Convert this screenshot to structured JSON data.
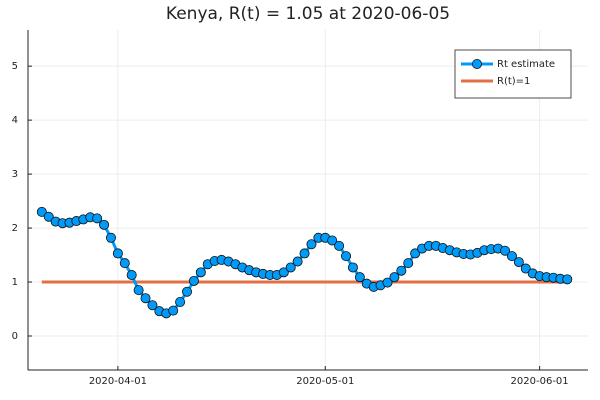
{
  "chart_data": {
    "type": "line",
    "title": "Kenya, R(t) = 1.05 at 2020-06-05",
    "x": [
      "2020-03-21",
      "2020-03-22",
      "2020-03-23",
      "2020-03-24",
      "2020-03-25",
      "2020-03-26",
      "2020-03-27",
      "2020-03-28",
      "2020-03-29",
      "2020-03-30",
      "2020-03-31",
      "2020-04-01",
      "2020-04-02",
      "2020-04-03",
      "2020-04-04",
      "2020-04-05",
      "2020-04-06",
      "2020-04-07",
      "2020-04-08",
      "2020-04-09",
      "2020-04-10",
      "2020-04-11",
      "2020-04-12",
      "2020-04-13",
      "2020-04-14",
      "2020-04-15",
      "2020-04-16",
      "2020-04-17",
      "2020-04-18",
      "2020-04-19",
      "2020-04-20",
      "2020-04-21",
      "2020-04-22",
      "2020-04-23",
      "2020-04-24",
      "2020-04-25",
      "2020-04-26",
      "2020-04-27",
      "2020-04-28",
      "2020-04-29",
      "2020-04-30",
      "2020-05-01",
      "2020-05-02",
      "2020-05-03",
      "2020-05-04",
      "2020-05-05",
      "2020-05-06",
      "2020-05-07",
      "2020-05-08",
      "2020-05-09",
      "2020-05-10",
      "2020-05-11",
      "2020-05-12",
      "2020-05-13",
      "2020-05-14",
      "2020-05-15",
      "2020-05-16",
      "2020-05-17",
      "2020-05-18",
      "2020-05-19",
      "2020-05-20",
      "2020-05-21",
      "2020-05-22",
      "2020-05-23",
      "2020-05-24",
      "2020-05-25",
      "2020-05-26",
      "2020-05-27",
      "2020-05-28",
      "2020-05-29",
      "2020-05-30",
      "2020-05-31",
      "2020-06-01",
      "2020-06-02",
      "2020-06-03",
      "2020-06-04",
      "2020-06-05"
    ],
    "series": [
      {
        "name": "Rt estimate",
        "color": "#009af9",
        "markers": true,
        "values": [
          2.3,
          2.21,
          2.12,
          2.09,
          2.1,
          2.13,
          2.16,
          2.2,
          2.18,
          2.06,
          1.82,
          1.53,
          1.35,
          1.13,
          0.85,
          0.7,
          0.57,
          0.46,
          0.42,
          0.47,
          0.63,
          0.82,
          1.02,
          1.18,
          1.33,
          1.39,
          1.41,
          1.38,
          1.33,
          1.27,
          1.22,
          1.18,
          1.15,
          1.13,
          1.13,
          1.18,
          1.27,
          1.38,
          1.53,
          1.7,
          1.82,
          1.82,
          1.77,
          1.67,
          1.48,
          1.27,
          1.09,
          0.97,
          0.91,
          0.94,
          0.99,
          1.09,
          1.21,
          1.35,
          1.53,
          1.62,
          1.67,
          1.67,
          1.63,
          1.59,
          1.55,
          1.52,
          1.51,
          1.54,
          1.59,
          1.61,
          1.62,
          1.58,
          1.48,
          1.37,
          1.25,
          1.16,
          1.11,
          1.09,
          1.08,
          1.06,
          1.05
        ]
      },
      {
        "name": "R(t)=1",
        "color": "#e26f46",
        "markers": false,
        "values": [
          1,
          1,
          1,
          1,
          1,
          1,
          1,
          1,
          1,
          1,
          1,
          1,
          1,
          1,
          1,
          1,
          1,
          1,
          1,
          1,
          1,
          1,
          1,
          1,
          1,
          1,
          1,
          1,
          1,
          1,
          1,
          1,
          1,
          1,
          1,
          1,
          1,
          1,
          1,
          1,
          1,
          1,
          1,
          1,
          1,
          1,
          1,
          1,
          1,
          1,
          1,
          1,
          1,
          1,
          1,
          1,
          1,
          1,
          1,
          1,
          1,
          1,
          1,
          1,
          1,
          1,
          1,
          1,
          1,
          1,
          1,
          1,
          1,
          1,
          1,
          1,
          1
        ]
      }
    ],
    "xlim": [
      "2020-03-19",
      "2020-06-08"
    ],
    "xticks": [
      "2020-04-01",
      "2020-05-01",
      "2020-06-01"
    ],
    "ylim": [
      -0.63,
      5.67
    ],
    "yticks": [
      0,
      1,
      2,
      3,
      4,
      5
    ],
    "grid": true,
    "legend": "top-right"
  }
}
